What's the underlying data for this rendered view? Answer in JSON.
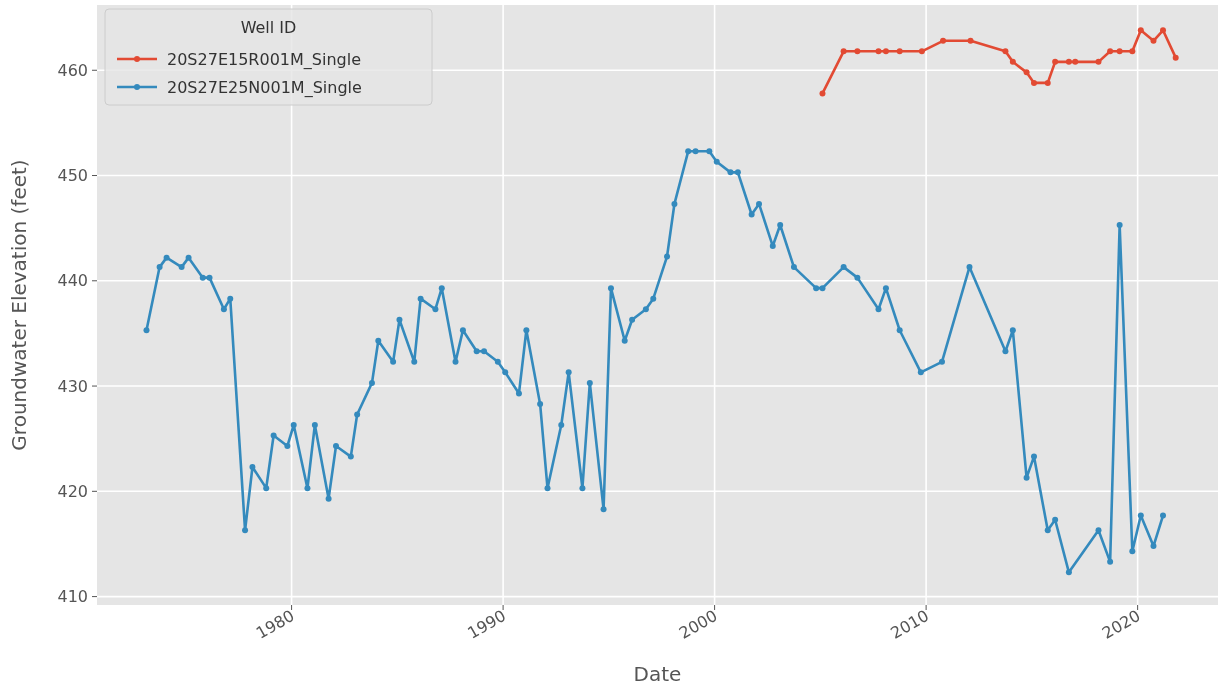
{
  "chart_data": {
    "type": "line",
    "xlabel": "Date",
    "ylabel": "Groundwater Elevation (feet)",
    "legend_title": "Well ID",
    "legend": "top left",
    "grid": true,
    "marker": "circle",
    "line_style": "solid",
    "xlim": [
      1970.8,
      2023.8
    ],
    "ylim": [
      409.2,
      466.2
    ],
    "xticks": [
      1980,
      1990,
      2000,
      2010,
      2020
    ],
    "yticks": [
      410,
      420,
      430,
      440,
      450,
      460
    ],
    "series": [
      {
        "name": "20S27E15R001M_Single",
        "color": "#e24a33",
        "x": [
          2005.1,
          2006.1,
          2006.75,
          2007.75,
          2008.1,
          2008.75,
          2009.8,
          2010.8,
          2012.1,
          2013.75,
          2014.1,
          2014.75,
          2015.1,
          2015.75,
          2016.1,
          2016.75,
          2017.05,
          2018.15,
          2018.7,
          2019.15,
          2019.75,
          2020.15,
          2020.75,
          2021.2,
          2021.8
        ],
        "values": [
          457.8,
          461.8,
          461.8,
          461.8,
          461.8,
          461.8,
          461.8,
          462.8,
          462.8,
          461.8,
          460.8,
          459.8,
          458.8,
          458.8,
          460.8,
          460.8,
          460.8,
          460.8,
          461.8,
          461.8,
          461.8,
          463.8,
          462.8,
          463.8,
          461.2
        ]
      },
      {
        "name": "20S27E25N001M_Single",
        "color": "#348abd",
        "x": [
          1973.14,
          1973.76,
          1974.09,
          1974.8,
          1975.13,
          1975.8,
          1976.12,
          1976.8,
          1977.1,
          1977.8,
          1978.15,
          1978.8,
          1979.15,
          1979.8,
          1980.1,
          1980.75,
          1981.1,
          1981.75,
          1982.1,
          1982.8,
          1983.1,
          1983.8,
          1984.1,
          1984.8,
          1985.1,
          1985.8,
          1986.1,
          1986.8,
          1987.1,
          1987.75,
          1988.1,
          1988.75,
          1989.1,
          1989.75,
          1990.1,
          1990.75,
          1991.1,
          1991.75,
          1992.1,
          1992.75,
          1993.1,
          1993.75,
          1994.1,
          1994.75,
          1995.1,
          1995.75,
          1996.1,
          1996.75,
          1997.1,
          1997.75,
          1998.1,
          1998.75,
          1999.1,
          1999.75,
          2000.1,
          2000.75,
          2001.1,
          2001.75,
          2002.1,
          2002.75,
          2003.1,
          2003.75,
          2004.8,
          2005.1,
          2006.1,
          2006.75,
          2007.75,
          2008.1,
          2008.75,
          2009.75,
          2010.75,
          2012.05,
          2013.75,
          2014.1,
          2014.75,
          2015.1,
          2015.75,
          2016.1,
          2016.75,
          2018.15,
          2018.7,
          2019.15,
          2019.75,
          2020.15,
          2020.75,
          2021.2
        ],
        "values": [
          435.3,
          441.3,
          442.2,
          441.3,
          442.2,
          440.3,
          440.3,
          437.3,
          438.3,
          416.3,
          422.3,
          420.3,
          425.3,
          424.3,
          426.3,
          420.3,
          426.3,
          419.3,
          424.3,
          423.3,
          427.3,
          430.3,
          434.3,
          432.3,
          436.3,
          432.3,
          438.3,
          437.3,
          439.3,
          432.3,
          435.3,
          433.3,
          433.3,
          432.3,
          431.3,
          429.3,
          435.3,
          428.3,
          420.3,
          426.3,
          431.3,
          420.3,
          430.3,
          418.3,
          439.3,
          434.3,
          436.3,
          437.3,
          438.3,
          442.3,
          447.3,
          452.3,
          452.3,
          452.3,
          451.3,
          450.3,
          450.3,
          446.3,
          447.3,
          443.3,
          445.3,
          441.3,
          439.3,
          439.3,
          441.3,
          440.3,
          437.3,
          439.3,
          435.3,
          431.3,
          432.3,
          441.3,
          433.3,
          435.3,
          421.3,
          423.3,
          416.3,
          417.3,
          412.3,
          416.3,
          413.3,
          445.3,
          414.3,
          417.7,
          414.8,
          417.7
        ]
      }
    ]
  }
}
